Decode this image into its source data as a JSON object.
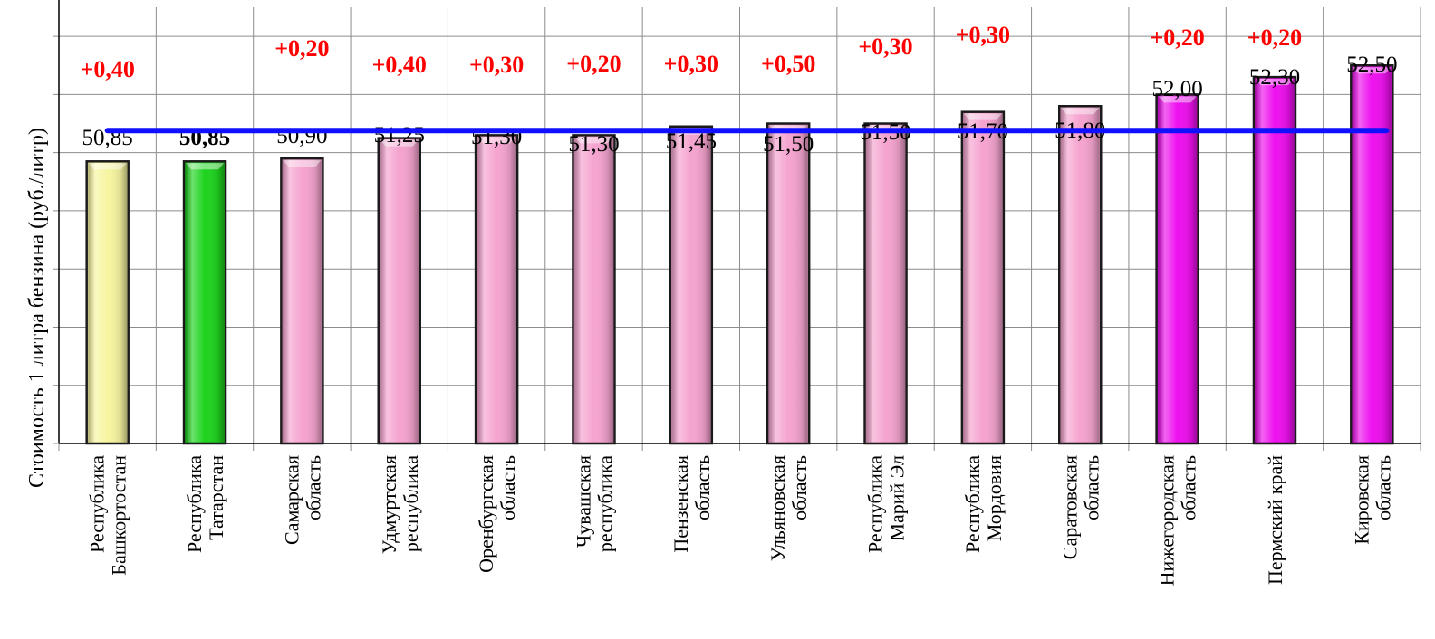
{
  "chart_data": {
    "type": "bar",
    "ylabel": "Стоимость 1 литра бензина  (руб./литр)",
    "categories": [
      [
        "Республика",
        "Башкортостан"
      ],
      [
        "Республика",
        "Татарстан"
      ],
      [
        "Самарская",
        "область"
      ],
      [
        "Удмуртская",
        "республика"
      ],
      [
        "Оренбургская",
        "область"
      ],
      [
        "Чувашская",
        "республика"
      ],
      [
        "Пензенская",
        "область"
      ],
      [
        "Ульяновская",
        "область"
      ],
      [
        "Республика",
        "Марий Эл"
      ],
      [
        "Республика",
        "Мордовия"
      ],
      [
        "Саратовская",
        "область"
      ],
      [
        "Нижегородская",
        "область"
      ],
      [
        "Пермский край"
      ],
      [
        "Кировская",
        "область"
      ]
    ],
    "values": [
      50.85,
      50.85,
      50.9,
      51.25,
      51.3,
      51.3,
      51.45,
      51.5,
      51.5,
      51.7,
      51.8,
      52.0,
      52.3,
      52.5
    ],
    "value_labels": [
      "50,85",
      "50,85",
      "50,90",
      "51,25",
      "51,30",
      "51,30",
      "51,45",
      "51,50",
      "51,50",
      "51,70",
      "51,80",
      "52,00",
      "52,30",
      "52,50"
    ],
    "change_labels": [
      "+0,40",
      "",
      "+0,20",
      "+0,40",
      "+0,30",
      "+0,20",
      "+0,30",
      "+0,50",
      "+0,30",
      "+0,30",
      "",
      "+0,20",
      "+0,20",
      ""
    ],
    "bar_colors": [
      "#f7f5a0",
      "#1ed31e",
      "#f5a3cf",
      "#f5a3cf",
      "#f5a3cf",
      "#f5a3cf",
      "#f5a3cf",
      "#f5a3cf",
      "#f5a3cf",
      "#f5a3cf",
      "#f5a3cf",
      "#ee10ee",
      "#ee10ee",
      "#ee10ee"
    ],
    "ylim": [
      46.0,
      53.5
    ],
    "reference_line": 51.38,
    "colors": {
      "change_text": "#ff0000",
      "reference_line": "#1010ff",
      "grid": "#8c8c8c",
      "axis": "#000000"
    },
    "grid": true
  }
}
